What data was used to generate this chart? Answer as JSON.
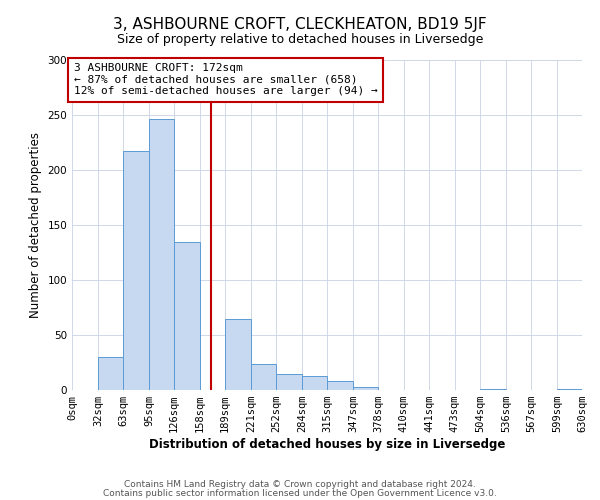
{
  "title": "3, ASHBOURNE CROFT, CLECKHEATON, BD19 5JF",
  "subtitle": "Size of property relative to detached houses in Liversedge",
  "xlabel": "Distribution of detached houses by size in Liversedge",
  "ylabel": "Number of detached properties",
  "bin_edges": [
    0,
    32,
    63,
    95,
    126,
    158,
    189,
    221,
    252,
    284,
    315,
    347,
    378,
    410,
    441,
    473,
    504,
    536,
    567,
    599,
    630
  ],
  "bar_heights": [
    0,
    30,
    217,
    246,
    135,
    0,
    65,
    24,
    15,
    13,
    8,
    3,
    0,
    0,
    0,
    0,
    1,
    0,
    0,
    1
  ],
  "bar_color": "#c6d9f0",
  "bar_edge_color": "#5b9bd5",
  "vline_x": 172,
  "vline_color": "#c00000",
  "ylim": [
    0,
    300
  ],
  "yticks": [
    0,
    50,
    100,
    150,
    200,
    250,
    300
  ],
  "xtick_labels": [
    "0sqm",
    "32sqm",
    "63sqm",
    "95sqm",
    "126sqm",
    "158sqm",
    "189sqm",
    "221sqm",
    "252sqm",
    "284sqm",
    "315sqm",
    "347sqm",
    "378sqm",
    "410sqm",
    "441sqm",
    "473sqm",
    "504sqm",
    "536sqm",
    "567sqm",
    "599sqm",
    "630sqm"
  ],
  "annotation_title": "3 ASHBOURNE CROFT: 172sqm",
  "annotation_line1": "← 87% of detached houses are smaller (658)",
  "annotation_line2": "12% of semi-detached houses are larger (94) →",
  "annotation_box_color": "#c00000",
  "footer_line1": "Contains HM Land Registry data © Crown copyright and database right 2024.",
  "footer_line2": "Contains public sector information licensed under the Open Government Licence v3.0.",
  "background_color": "#ffffff",
  "grid_color": "#d0d8e8",
  "title_fontsize": 11,
  "subtitle_fontsize": 9,
  "axis_label_fontsize": 8.5,
  "tick_fontsize": 7.5,
  "annotation_fontsize": 8,
  "footer_fontsize": 6.5
}
